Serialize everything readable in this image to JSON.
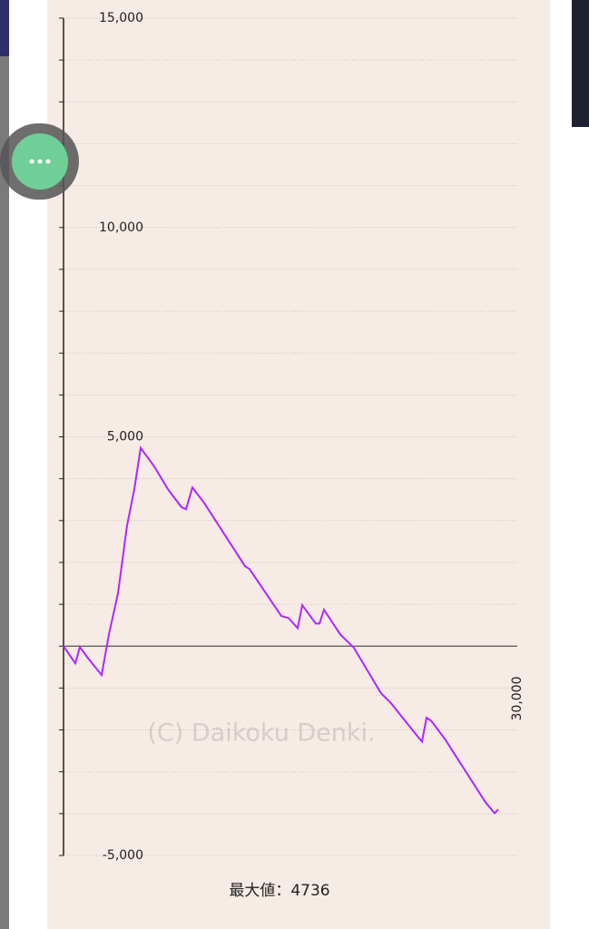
{
  "chart_data": {
    "type": "line",
    "annotation": "最大値：4736",
    "watermark": "(C) Daikoku Denki.",
    "x": [
      0,
      780,
      1080,
      1560,
      2520,
      3000,
      3600,
      4200,
      4680,
      5100,
      6000,
      6900,
      7800,
      8100,
      8520,
      9300,
      12000,
      12300,
      14400,
      14880,
      15480,
      15780,
      16680,
      16920,
      17220,
      18300,
      19200,
      21000,
      21600,
      23400,
      23700,
      24000,
      24300,
      25200,
      27900,
      28500,
      28740
    ],
    "series": [
      {
        "color": "#b026ff",
        "values": [
          0,
          -410,
          -20,
          -260,
          -690,
          280,
          1260,
          2880,
          3750,
          4736,
          4290,
          3750,
          3320,
          3270,
          3790,
          3420,
          1910,
          1840,
          720,
          670,
          430,
          980,
          540,
          540,
          870,
          280,
          -40,
          -1130,
          -1340,
          -2150,
          -2280,
          -1710,
          -1780,
          -2210,
          -3730,
          -3990,
          -3900
        ]
      }
    ],
    "xlim": [
      0,
      30000
    ],
    "xticks": [
      {
        "value": 30000,
        "label": "30,000"
      }
    ],
    "ylim": [
      -5000,
      15000
    ],
    "yticks": [
      {
        "value": -5000,
        "label": "-5,000"
      },
      {
        "value": 5000,
        "label": "5,000"
      },
      {
        "value": 10000,
        "label": "10,000"
      },
      {
        "value": 15000,
        "label": "15,000"
      }
    ],
    "minor_yticks": [
      -4000,
      -3000,
      -2000,
      -1000,
      0,
      1000,
      2000,
      3000,
      4000,
      6000,
      7000,
      8000,
      9000,
      11000,
      12000,
      13000,
      14000
    ],
    "grid": true
  }
}
